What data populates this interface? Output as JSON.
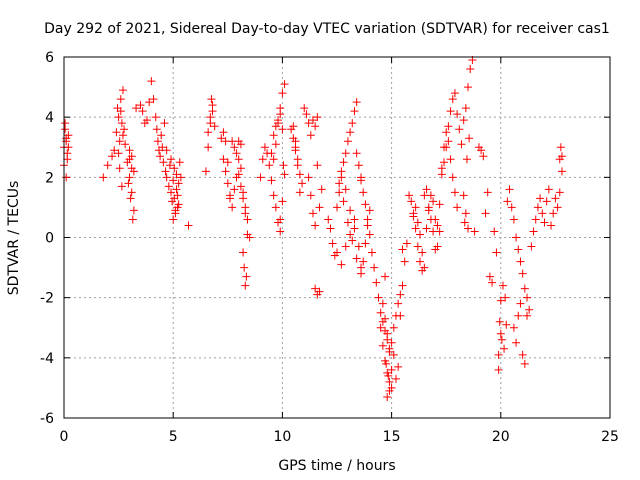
{
  "chart_data": {
    "type": "scatter",
    "title": "Day 292 of 2021, Sidereal Day-to-day VTEC variation (SDTVAR) for receiver cas1",
    "xlabel": "GPS time / hours",
    "ylabel": "SDTVAR / TECUs",
    "xlim": [
      0,
      25
    ],
    "ylim": [
      -6,
      6
    ],
    "x_ticks": [
      0,
      5,
      10,
      15,
      20,
      25
    ],
    "x_tick_labels": [
      "0",
      "5",
      "10",
      "15",
      "20",
      "25"
    ],
    "y_ticks": [
      -6,
      -4,
      -2,
      0,
      2,
      4,
      6
    ],
    "y_tick_labels": [
      "-6",
      "-4",
      "-2",
      "0",
      "2",
      "4",
      "6"
    ],
    "grid": true,
    "marker": "plus",
    "marker_color": "#ff0000",
    "series": [
      {
        "name": "cas1",
        "x": [
          0.0,
          0.05,
          0.1,
          0.15,
          0.2,
          0.0,
          0.1,
          0.2,
          0.05,
          0.15,
          0.1,
          1.8,
          2.0,
          2.2,
          2.3,
          2.4,
          2.45,
          2.5,
          2.55,
          2.6,
          2.65,
          2.7,
          2.75,
          2.8,
          2.5,
          2.6,
          2.7,
          2.55,
          2.65,
          2.9,
          3.0,
          3.1,
          3.2,
          3.0,
          3.1,
          2.95,
          3.05,
          3.15,
          3.0,
          3.1,
          3.2,
          3.3,
          3.5,
          3.6,
          3.7,
          3.8,
          3.9,
          4.0,
          4.1,
          4.2,
          4.25,
          4.3,
          4.35,
          4.4,
          4.45,
          4.5,
          4.55,
          4.6,
          4.65,
          4.7,
          4.7,
          4.8,
          4.85,
          4.9,
          4.95,
          5.0,
          5.05,
          5.1,
          5.15,
          5.2,
          5.25,
          5.3,
          5.35,
          5.0,
          5.1,
          5.2,
          4.9,
          5.05,
          5.15,
          5.25,
          5.7,
          6.5,
          6.6,
          6.7,
          6.8,
          6.9,
          6.6,
          6.7,
          6.8,
          6.75,
          7.2,
          7.3,
          7.4,
          7.5,
          7.6,
          7.7,
          7.8,
          7.9,
          8.0,
          8.1,
          7.3,
          7.4,
          7.5,
          7.6,
          7.7,
          7.8,
          7.9,
          8.0,
          8.1,
          8.2,
          8.3,
          8.4,
          8.5,
          8.0,
          8.1,
          8.2,
          8.3,
          8.2,
          8.25,
          8.3,
          8.4,
          8.35,
          9.0,
          9.1,
          9.2,
          9.3,
          9.4,
          9.5,
          9.6,
          9.7,
          9.8,
          9.9,
          10.0,
          10.1,
          9.6,
          9.7,
          9.8,
          9.9,
          10.0,
          10.1,
          9.5,
          9.6,
          9.7,
          9.8,
          9.9,
          9.9,
          10.0,
          10.05,
          10.4,
          10.5,
          10.6,
          10.7,
          10.8,
          10.9,
          10.6,
          10.7,
          10.8,
          10.5,
          10.6,
          11.0,
          11.1,
          11.2,
          11.3,
          11.4,
          11.5,
          11.6,
          11.2,
          11.3,
          11.4,
          11.5,
          11.5,
          11.6,
          11.7,
          11.8,
          11.6,
          11.7,
          12.1,
          12.2,
          12.3,
          12.4,
          12.5,
          12.6,
          12.7,
          12.8,
          12.9,
          13.0,
          13.1,
          13.2,
          13.3,
          13.4,
          12.5,
          12.7,
          12.9,
          13.1,
          13.3,
          12.6,
          12.8,
          13.0,
          13.2,
          13.4,
          13.6,
          12.7,
          12.9,
          13.1,
          13.3,
          13.5,
          13.6,
          13.7,
          13.8,
          13.9,
          14.0,
          13.4,
          13.5,
          13.6,
          13.6,
          13.7,
          13.8,
          13.9,
          14.0,
          14.1,
          14.2,
          14.3,
          14.4,
          14.5,
          14.6,
          14.7,
          14.8,
          14.9,
          15.0,
          15.1,
          15.2,
          15.3,
          15.4,
          15.5,
          14.5,
          14.6,
          14.7,
          14.8,
          14.9,
          15.0,
          14.6,
          14.7,
          14.8,
          14.9,
          14.7,
          14.8,
          14.75,
          14.85,
          14.9,
          15.0,
          15.1,
          15.2,
          15.3,
          15.4,
          15.5,
          15.6,
          15.7,
          15.8,
          15.9,
          16.0,
          16.1,
          16.2,
          16.3,
          16.4,
          16.5,
          16.6,
          16.7,
          16.8,
          16.9,
          17.0,
          17.1,
          17.2,
          17.3,
          17.4,
          16.0,
          16.1,
          16.2,
          16.3,
          16.4,
          16.5,
          16.6,
          16.7,
          16.8,
          16.9,
          17.0,
          17.1,
          17.2,
          17.3,
          17.5,
          17.6,
          17.7,
          17.8,
          17.9,
          18.0,
          17.4,
          17.5,
          17.6,
          17.7,
          17.8,
          17.9,
          18.0,
          18.1,
          18.2,
          18.3,
          18.4,
          18.5,
          18.6,
          18.7,
          18.3,
          18.4,
          18.5,
          18.35,
          18.45,
          18.55,
          18.8,
          19.0,
          19.1,
          19.2,
          19.3,
          19.4,
          19.5,
          19.6,
          19.7,
          19.8,
          19.9,
          20.0,
          20.1,
          20.2,
          19.95,
          20.05,
          20.15,
          20.25,
          19.9,
          20.0,
          20.3,
          20.4,
          20.5,
          20.6,
          20.7,
          20.8,
          20.9,
          21.0,
          21.1,
          21.2,
          21.3,
          21.4,
          21.5,
          21.6,
          21.7,
          21.8,
          21.9,
          22.0,
          22.1,
          22.2,
          20.6,
          20.7,
          20.8,
          20.9,
          21.0,
          21.1,
          21.2,
          22.3,
          22.4,
          22.5,
          22.6,
          22.7,
          22.8,
          22.75,
          22.8,
          22.7
        ],
        "y": [
          3.0,
          3.6,
          3.2,
          2.8,
          3.4,
          2.4,
          2.0,
          3.0,
          3.8,
          2.6,
          3.3,
          2.0,
          2.4,
          2.7,
          2.9,
          3.5,
          4.3,
          4.0,
          3.2,
          4.6,
          3.8,
          4.9,
          3.6,
          3.1,
          2.8,
          4.2,
          3.4,
          2.3,
          1.7,
          2.5,
          2.0,
          1.5,
          0.9,
          2.6,
          2.3,
          1.8,
          1.3,
          0.6,
          2.9,
          2.7,
          2.2,
          4.3,
          4.4,
          4.2,
          3.8,
          3.9,
          4.5,
          5.2,
          4.6,
          4.0,
          3.6,
          3.2,
          2.9,
          2.7,
          3.4,
          3.0,
          2.5,
          3.8,
          2.2,
          2.9,
          2.0,
          1.7,
          2.4,
          1.5,
          1.2,
          1.9,
          1.3,
          0.9,
          2.1,
          1.4,
          1.8,
          2.5,
          2.0,
          0.6,
          0.8,
          1.0,
          2.6,
          2.3,
          1.6,
          1.1,
          0.4,
          2.2,
          3.5,
          4.0,
          4.4,
          3.7,
          3.0,
          3.8,
          4.2,
          4.6,
          3.3,
          3.5,
          3.2,
          2.5,
          1.4,
          3.2,
          3.0,
          2.8,
          3.2,
          3.1,
          2.6,
          2.2,
          1.8,
          1.3,
          1.0,
          1.6,
          2.0,
          2.6,
          2.3,
          1.5,
          1.0,
          0.6,
          0.0,
          2.1,
          1.7,
          1.3,
          0.8,
          -0.5,
          -1.0,
          -1.6,
          0.1,
          -1.3,
          2.0,
          2.6,
          3.0,
          2.8,
          2.4,
          1.9,
          2.6,
          3.1,
          3.8,
          4.3,
          4.8,
          5.1,
          1.4,
          1.0,
          0.5,
          0.2,
          1.2,
          2.1,
          2.8,
          3.4,
          3.7,
          3.9,
          4.1,
          0.6,
          3.6,
          2.4,
          3.6,
          3.3,
          3.0,
          2.6,
          2.1,
          1.8,
          2.9,
          2.4,
          1.5,
          3.7,
          3.2,
          4.3,
          4.1,
          3.8,
          3.4,
          3.9,
          3.7,
          4.0,
          2.0,
          1.4,
          0.8,
          0.4,
          -1.7,
          -1.9,
          -1.8,
          1.6,
          2.4,
          1.0,
          0.6,
          0.3,
          -0.2,
          -0.6,
          1.0,
          1.5,
          2.0,
          2.5,
          2.8,
          3.2,
          3.5,
          3.8,
          4.2,
          4.5,
          -0.5,
          -0.9,
          -0.3,
          0.1,
          0.6,
          1.8,
          1.2,
          0.5,
          -0.1,
          -0.7,
          -1.0,
          2.2,
          1.6,
          0.9,
          0.3,
          -0.3,
          -1.2,
          -0.8,
          -0.2,
          0.4,
          0.9,
          2.8,
          2.4,
          2.0,
          1.9,
          1.5,
          1.1,
          0.6,
          0.1,
          -0.5,
          -1.0,
          -1.5,
          -2.0,
          -2.5,
          -2.8,
          -3.1,
          -3.4,
          -3.7,
          -3.5,
          -3.0,
          -2.6,
          -2.2,
          -1.9,
          -1.6,
          -3.0,
          -3.6,
          -4.1,
          -4.5,
          -4.8,
          -5.0,
          -2.2,
          -2.7,
          -3.2,
          -3.8,
          -1.3,
          -5.3,
          -4.2,
          -4.6,
          -5.1,
          -4.4,
          -3.9,
          -4.7,
          -4.3,
          -2.6,
          -0.4,
          -0.8,
          -0.2,
          1.4,
          1.2,
          0.8,
          1.0,
          0.5,
          0.1,
          -0.5,
          -1.0,
          0.3,
          0.9,
          1.4,
          1.2,
          0.6,
          -0.3,
          0.2,
          2.3,
          3.0,
          0.7,
          0.3,
          -0.3,
          -0.8,
          -1.1,
          1.4,
          1.6,
          1.0,
          0.6,
          0.2,
          -0.4,
          0.4,
          1.1,
          2.1,
          3.5,
          3.2,
          2.6,
          2.0,
          1.5,
          1.0,
          2.5,
          3.0,
          3.7,
          4.2,
          4.6,
          4.8,
          4.1,
          3.6,
          3.1,
          3.9,
          4.3,
          5.0,
          5.6,
          5.9,
          1.4,
          0.8,
          0.3,
          0.5,
          2.6,
          3.3,
          0.2,
          3.0,
          2.9,
          2.7,
          0.8,
          1.5,
          -1.3,
          -1.5,
          0.2,
          -0.5,
          -4.4,
          -2.1,
          -1.6,
          -2.0,
          -2.8,
          -3.4,
          -3.7,
          -2.9,
          -3.9,
          -3.2,
          1.2,
          1.6,
          1.0,
          0.6,
          0.0,
          -0.4,
          -0.8,
          -1.2,
          -1.7,
          -2.0,
          -2.4,
          -0.3,
          0.2,
          0.6,
          1.0,
          1.3,
          0.8,
          0.5,
          1.2,
          1.6,
          -3.0,
          -3.5,
          -2.6,
          -2.2,
          -3.9,
          -4.2,
          -2.6,
          0.4,
          0.8,
          1.3,
          1.0,
          2.6,
          2.2,
          3.0,
          2.7,
          1.5
        ]
      }
    ]
  }
}
